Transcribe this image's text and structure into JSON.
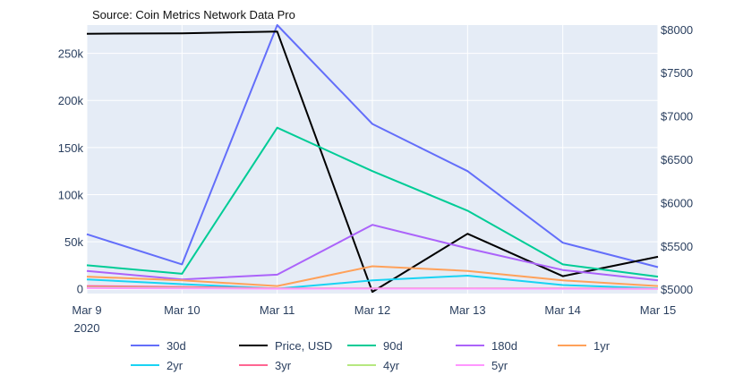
{
  "source": "Source: Coin Metrics Network Data Pro",
  "colors": {
    "background": "#ffffff",
    "plot_background": "#e5ecf6",
    "gridline": "#ffffff"
  },
  "chart_data": {
    "type": "line",
    "categories": [
      "Mar 9",
      "Mar 10",
      "Mar 11",
      "Mar 12",
      "Mar 13",
      "Mar 14",
      "Mar 15"
    ],
    "x_tick_labels": [
      [
        "Mar 9",
        "2020"
      ],
      [
        "Mar 10"
      ],
      [
        "Mar 11"
      ],
      [
        "Mar 12"
      ],
      [
        "Mar 13"
      ],
      [
        "Mar 14"
      ],
      [
        "Mar 15"
      ]
    ],
    "y_left": {
      "range": [
        -5000,
        280000
      ],
      "ticks": [
        0,
        50000,
        100000,
        150000,
        200000,
        250000
      ],
      "tick_labels": [
        "0",
        "50k",
        "100k",
        "150k",
        "200k",
        "250k"
      ]
    },
    "y_right": {
      "range": [
        4950,
        8050
      ],
      "ticks": [
        5000,
        5500,
        6000,
        6500,
        7000,
        7500,
        8000
      ],
      "tick_labels": [
        "$5000",
        "$5500",
        "$6000",
        "$6500",
        "$7000",
        "$7500",
        "$8000"
      ]
    },
    "grid": true,
    "legend_position": "bottom",
    "series": [
      {
        "name": "30d",
        "color": "#636efa",
        "axis": "left",
        "values": [
          58000,
          26000,
          280000,
          175000,
          125000,
          49000,
          23000
        ]
      },
      {
        "name": "Price, USD",
        "color": "#000000",
        "axis": "right",
        "values": [
          7950,
          7955,
          7975,
          4970,
          5640,
          5150,
          5375
        ]
      },
      {
        "name": "90d",
        "color": "#00cc96",
        "axis": "left",
        "values": [
          25000,
          16000,
          171000,
          125000,
          83000,
          26000,
          13000
        ]
      },
      {
        "name": "180d",
        "color": "#ab63fa",
        "axis": "left",
        "values": [
          19000,
          10000,
          15000,
          68000,
          43000,
          20000,
          9000
        ]
      },
      {
        "name": "1yr",
        "color": "#ffa15a",
        "axis": "left",
        "values": [
          13000,
          9000,
          3000,
          24000,
          19000,
          9000,
          3000
        ]
      },
      {
        "name": "2yr",
        "color": "#19d3f3",
        "axis": "left",
        "values": [
          10000,
          5000,
          200,
          9000,
          14000,
          4000,
          500
        ]
      },
      {
        "name": "3yr",
        "color": "#ff6692",
        "axis": "left",
        "values": [
          3000,
          2000,
          500,
          500,
          500,
          500,
          200
        ]
      },
      {
        "name": "4yr",
        "color": "#b6e880",
        "axis": "left",
        "values": [
          1500,
          1000,
          200,
          300,
          300,
          200,
          100
        ]
      },
      {
        "name": "5yr",
        "color": "#ff97ff",
        "axis": "left",
        "values": [
          800,
          500,
          100,
          200,
          200,
          100,
          50
        ]
      }
    ]
  }
}
